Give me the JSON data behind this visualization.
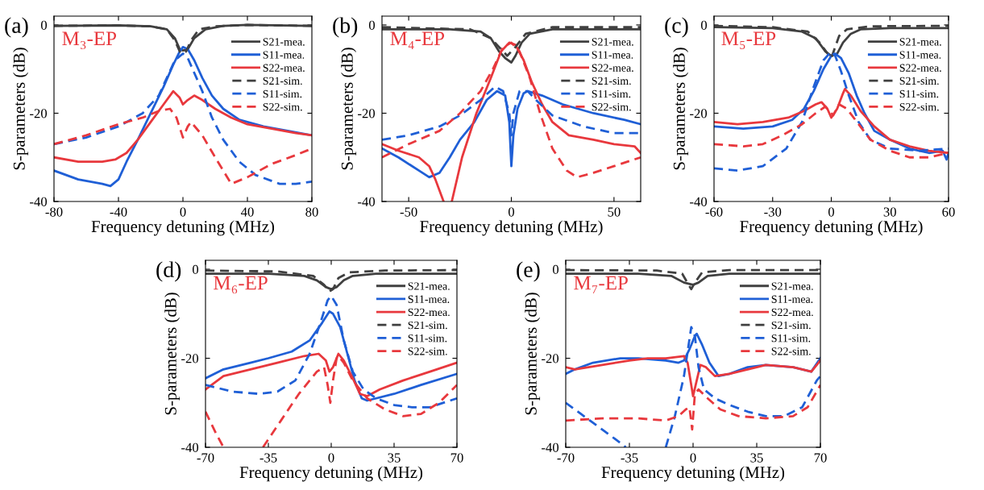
{
  "chart_data": [
    {
      "type": "line",
      "title": "(a)",
      "xlabel": "Frequency detuning (MHz)",
      "ylabel": "S-parameters (dB)",
      "annotations": [
        "M₃-EP"
      ],
      "legend": "top right",
      "xlim": [
        -80,
        80
      ],
      "xticks": [
        -80,
        -40,
        0,
        40,
        80
      ],
      "ylim": [
        -40,
        2
      ],
      "yticks": [
        -40,
        -20,
        0
      ],
      "series": [
        {
          "name": "S21-mea.",
          "color": "#404040",
          "line_style": "solid",
          "x": [
            -80,
            -40,
            -20,
            -10,
            -5,
            -2,
            0,
            3,
            7,
            14,
            25,
            40,
            80
          ],
          "values": [
            -0.2,
            -0.1,
            -0.3,
            -1,
            -3,
            -5.5,
            -5.8,
            -5.5,
            -3,
            -1,
            -0.2,
            0,
            -0.2
          ]
        },
        {
          "name": "S11-mea.",
          "color": "#1f5fd6",
          "line_style": "solid",
          "x": [
            -80,
            -65,
            -50,
            -45,
            -40,
            -35,
            -28,
            -20,
            -12,
            -6,
            -2,
            0,
            3,
            7,
            12,
            18,
            25,
            35,
            50,
            65,
            80
          ],
          "values": [
            -33,
            -35,
            -36,
            -36.5,
            -35,
            -31,
            -26,
            -20,
            -14,
            -9,
            -6,
            -5,
            -5.5,
            -8,
            -12,
            -16,
            -19,
            -21.5,
            -23,
            -24,
            -25
          ]
        },
        {
          "name": "S22-mea.",
          "color": "#e8383d",
          "line_style": "solid",
          "x": [
            -80,
            -65,
            -50,
            -42,
            -35,
            -28,
            -20,
            -12,
            -6,
            -2,
            0,
            3,
            7,
            12,
            20,
            30,
            40,
            55,
            70,
            80
          ],
          "values": [
            -30,
            -31,
            -31,
            -30.5,
            -29,
            -26,
            -22,
            -18,
            -15,
            -16.5,
            -18,
            -17,
            -16,
            -17,
            -19,
            -21,
            -22.5,
            -23.5,
            -24.5,
            -25
          ]
        },
        {
          "name": "S21-sim.",
          "color": "#404040",
          "line_style": "dashed",
          "x": [
            -80,
            -40,
            -20,
            -10,
            -5,
            -2,
            0,
            2,
            5,
            10,
            20,
            40,
            80
          ],
          "values": [
            -0.2,
            -0.1,
            -0.3,
            -1,
            -3.5,
            -6,
            -6.5,
            -6,
            -3.5,
            -1,
            -0.3,
            0,
            -0.2
          ]
        },
        {
          "name": "S11-sim.",
          "color": "#1f5fd6",
          "line_style": "dashed",
          "x": [
            -80,
            -60,
            -40,
            -25,
            -15,
            -10,
            -5,
            0,
            3,
            6,
            12,
            18,
            25,
            35,
            45,
            60,
            70,
            80
          ],
          "values": [
            -27,
            -25.5,
            -23,
            -20,
            -16,
            -12,
            -8,
            -6.5,
            -7.5,
            -10,
            -15,
            -21,
            -26,
            -31,
            -34,
            -36,
            -36,
            -35.5
          ]
        },
        {
          "name": "S22-sim.",
          "color": "#e8383d",
          "line_style": "dashed",
          "x": [
            -80,
            -60,
            -40,
            -25,
            -15,
            -8,
            -4,
            0,
            3,
            5,
            12,
            20,
            30,
            40,
            55,
            70,
            80
          ],
          "values": [
            -27,
            -25,
            -22.5,
            -21,
            -19.5,
            -19,
            -21,
            -25.5,
            -23,
            -22,
            -25,
            -30,
            -36,
            -34.5,
            -31.5,
            -29.5,
            -28
          ]
        }
      ]
    },
    {
      "type": "line",
      "title": "(b)",
      "xlabel": "Frequency detuning (MHz)",
      "ylabel": "S-parameters (dB)",
      "annotations": [
        "M₄-EP"
      ],
      "legend": "top right",
      "xlim": [
        -63,
        63
      ],
      "xticks": [
        -50,
        0,
        50
      ],
      "ylim": [
        -40,
        2
      ],
      "yticks": [
        -40,
        -20,
        0
      ],
      "series": [
        {
          "name": "S21-mea.",
          "color": "#404040",
          "line_style": "solid",
          "x": [
            -63,
            -30,
            -15,
            -10,
            -6,
            -3,
            0,
            2,
            5,
            9,
            20,
            63
          ],
          "values": [
            -1,
            -1,
            -1.5,
            -3,
            -6,
            -7.5,
            -8.5,
            -7,
            -4,
            -2,
            -1,
            -1
          ]
        },
        {
          "name": "S11-mea.",
          "color": "#1f5fd6",
          "line_style": "solid",
          "x": [
            -63,
            -55,
            -45,
            -40,
            -35,
            -30,
            -25,
            -18,
            -12,
            -7,
            -3,
            -1,
            0,
            1,
            3,
            6,
            8,
            15,
            25,
            40,
            55,
            63
          ],
          "values": [
            -28,
            -30,
            -33,
            -34.5,
            -33.5,
            -30,
            -26,
            -22,
            -17,
            -15,
            -16,
            -22,
            -32,
            -25,
            -19,
            -15.5,
            -15,
            -16,
            -18,
            -20,
            -21.5,
            -22.5
          ]
        },
        {
          "name": "S22-mea.",
          "color": "#e8383d",
          "line_style": "solid",
          "x": [
            -63,
            -55,
            -45,
            -40,
            -37,
            -33,
            -31,
            -29,
            -24,
            -17,
            -10,
            -5,
            -1,
            2,
            6,
            10,
            15,
            20,
            28,
            40,
            50,
            60,
            63
          ],
          "values": [
            -27,
            -28.5,
            -30,
            -32,
            -35,
            -40,
            null,
            -40,
            -30,
            -20,
            -12,
            -6,
            -4,
            -4.5,
            -8,
            -13,
            -18,
            -22,
            -25,
            -26,
            -27,
            -27.5,
            -29
          ]
        },
        {
          "name": "S21-sim.",
          "color": "#404040",
          "line_style": "dashed",
          "x": [
            -63,
            -20,
            -10,
            -4,
            -2,
            2,
            7,
            20,
            63
          ],
          "values": [
            -0.5,
            -1,
            -3,
            -6,
            -7,
            -5,
            -2,
            -0.5,
            -0.5
          ]
        },
        {
          "name": "S11-sim.",
          "color": "#1f5fd6",
          "line_style": "dashed",
          "x": [
            -63,
            -50,
            -35,
            -25,
            -15,
            -8,
            -4,
            -1,
            0,
            1,
            4,
            8,
            12,
            20,
            35,
            50,
            63
          ],
          "values": [
            -26,
            -25,
            -23,
            -20.5,
            -17,
            -14,
            -15,
            -20,
            -25,
            -20,
            -15,
            -15,
            -17,
            -20.5,
            -23,
            -24.5,
            -24.5
          ]
        },
        {
          "name": "S22-sim.",
          "color": "#e8383d",
          "line_style": "dashed",
          "x": [
            -63,
            -50,
            -35,
            -25,
            -15,
            -9,
            -4,
            0,
            4,
            9,
            14,
            20,
            27,
            32,
            40,
            50,
            63
          ],
          "values": [
            -30,
            -27,
            -24,
            -20,
            -15,
            -10,
            -5,
            -4,
            -6,
            -12,
            -20,
            -28,
            -33,
            -34.5,
            -33.5,
            -32,
            -30
          ]
        }
      ]
    },
    {
      "type": "line",
      "title": "(c)",
      "xlabel": "Frequency detuning (MHz)",
      "ylabel": "S-parameters (dB)",
      "annotations": [
        "M₅-EP"
      ],
      "legend": "top right",
      "xlim": [
        -60,
        60
      ],
      "xticks": [
        -60,
        -30,
        0,
        30,
        60
      ],
      "ylim": [
        -40,
        2
      ],
      "yticks": [
        -40,
        -20,
        0
      ],
      "series": [
        {
          "name": "S21-mea.",
          "color": "#404040",
          "line_style": "solid",
          "x": [
            -60,
            -30,
            -15,
            -8,
            -3,
            0,
            3,
            6,
            10,
            15,
            30,
            60
          ],
          "values": [
            -0.5,
            -0.7,
            -1.5,
            -3,
            -6,
            -7,
            -6.5,
            -4,
            -2,
            -1,
            -0.7,
            -0.7
          ]
        },
        {
          "name": "S11-mea.",
          "color": "#1f5fd6",
          "line_style": "solid",
          "x": [
            -60,
            -45,
            -30,
            -20,
            -14,
            -9,
            -4,
            0,
            2,
            5,
            9,
            13,
            17,
            22,
            30,
            40,
            50,
            57,
            59,
            60
          ],
          "values": [
            -23,
            -23.5,
            -23,
            -21.5,
            -19,
            -15,
            -10,
            -7,
            -6.5,
            -7.5,
            -11,
            -16,
            -20,
            -24,
            -26,
            -28,
            -29,
            -28.5,
            -30.5,
            -29
          ]
        },
        {
          "name": "S22-mea.",
          "color": "#e8383d",
          "line_style": "solid",
          "x": [
            -60,
            -48,
            -35,
            -22,
            -14,
            -8,
            -5,
            -2,
            0,
            3,
            6,
            7,
            10,
            15,
            22,
            30,
            40,
            50,
            60
          ],
          "values": [
            -22,
            -22.5,
            -22,
            -21,
            -19.5,
            -18,
            -17.5,
            -19,
            -21,
            -19,
            -15.5,
            -14.5,
            -16,
            -19.5,
            -23,
            -26,
            -27.5,
            -28.5,
            -29
          ]
        },
        {
          "name": "S21-sim.",
          "color": "#404040",
          "line_style": "dashed",
          "x": [
            -60,
            -30,
            -12,
            -6,
            -1,
            0,
            2,
            4,
            8,
            20,
            60
          ],
          "values": [
            -0.2,
            -0.5,
            -1.5,
            -4,
            -7,
            -7.5,
            -5,
            -2.5,
            -1,
            -0.3,
            -0.2
          ]
        },
        {
          "name": "S11-sim.",
          "color": "#1f5fd6",
          "line_style": "dashed",
          "x": [
            -60,
            -48,
            -35,
            -23,
            -15,
            -9,
            -4,
            0,
            2,
            5,
            9,
            14,
            20,
            30,
            45,
            60
          ],
          "values": [
            -32.5,
            -33,
            -32,
            -28,
            -22,
            -14,
            -8,
            -6,
            -7,
            -10.5,
            -16,
            -22,
            -26,
            -28,
            -28.5,
            -28
          ]
        },
        {
          "name": "S22-sim.",
          "color": "#e8383d",
          "line_style": "dashed",
          "x": [
            -60,
            -45,
            -35,
            -25,
            -15,
            -8,
            -3,
            0,
            1,
            4,
            8,
            14,
            20,
            30,
            40,
            50,
            60
          ],
          "values": [
            -27,
            -27.5,
            -27,
            -25,
            -22.5,
            -20,
            -18.5,
            -20,
            -20.5,
            -18,
            -19,
            -22.5,
            -26,
            -28.5,
            -30,
            -30,
            -29
          ]
        }
      ]
    },
    {
      "type": "line",
      "title": "(d)",
      "xlabel": "Frequency detuning (MHz)",
      "ylabel": "S-parameters (dB)",
      "annotations": [
        "M₆-EP"
      ],
      "legend": "top right",
      "xlim": [
        -70,
        70
      ],
      "xticks": [
        -70,
        -35,
        0,
        35,
        70
      ],
      "ylim": [
        -40,
        2
      ],
      "yticks": [
        -40,
        -20,
        0
      ],
      "series": [
        {
          "name": "S21-mea.",
          "color": "#404040",
          "line_style": "solid",
          "x": [
            -70,
            -35,
            -15,
            -8,
            -3,
            0,
            3,
            7,
            12,
            25,
            70
          ],
          "values": [
            -1,
            -1,
            -1.5,
            -2.5,
            -4,
            -4.5,
            -4,
            -2.5,
            -1.5,
            -1,
            -1
          ]
        },
        {
          "name": "S11-mea.",
          "color": "#1f5fd6",
          "line_style": "solid",
          "x": [
            -70,
            -60,
            -45,
            -35,
            -22,
            -12,
            -5,
            -1,
            1,
            5,
            9,
            13,
            17,
            20,
            25,
            35,
            50,
            70
          ],
          "values": [
            -24.5,
            -22.5,
            -21,
            -20,
            -18.5,
            -16,
            -12,
            -9.5,
            -10,
            -13,
            -19,
            -25,
            -29,
            -29.5,
            -29,
            -28,
            -26,
            -23.5
          ]
        },
        {
          "name": "S22-mea.",
          "color": "#e8383d",
          "line_style": "solid",
          "x": [
            -70,
            -60,
            -45,
            -30,
            -15,
            -7,
            -3,
            -1,
            1,
            4,
            7,
            12,
            16,
            20,
            27,
            40,
            55,
            70
          ],
          "values": [
            -27,
            -24,
            -22.5,
            -21,
            -19.5,
            -19,
            -20.5,
            -23,
            -22,
            -19,
            -20.5,
            -24.5,
            -28,
            -28.5,
            -27,
            -25,
            -23,
            -21
          ]
        },
        {
          "name": "S21-sim.",
          "color": "#404040",
          "line_style": "dashed",
          "x": [
            -70,
            -30,
            -10,
            -4,
            -1,
            1,
            4,
            10,
            30,
            70
          ],
          "values": [
            -0.3,
            -0.5,
            -1.5,
            -3.5,
            -5,
            -4.5,
            -2,
            -0.7,
            -0.3,
            -0.2
          ]
        },
        {
          "name": "S11-sim.",
          "color": "#1f5fd6",
          "line_style": "dashed",
          "x": [
            -70,
            -55,
            -40,
            -30,
            -20,
            -12,
            -6,
            -2,
            0,
            3,
            7,
            12,
            18,
            25,
            35,
            45,
            55,
            70
          ],
          "values": [
            -26,
            -27.5,
            -28,
            -27.5,
            -25,
            -19,
            -12,
            -7,
            -6,
            -8,
            -16,
            -23,
            -27,
            -29,
            -30.5,
            -31,
            -31,
            -29
          ]
        },
        {
          "name": "S22-sim.",
          "color": "#e8383d",
          "line_style": "dashed",
          "x": [
            -70,
            -64,
            -60,
            -50,
            -38,
            -28,
            -18,
            -8,
            -4,
            -2,
            -0.5,
            1,
            3,
            4,
            7,
            12,
            20,
            30,
            40,
            50,
            60,
            70
          ],
          "values": [
            -32,
            -37,
            -40,
            null,
            -40,
            -34,
            -28,
            -23,
            -22,
            -26,
            -30,
            -25,
            -20,
            -19.5,
            -21,
            -25,
            -29,
            -31.5,
            -33,
            -32.5,
            -30,
            -26
          ]
        }
      ]
    },
    {
      "type": "line",
      "title": "(e)",
      "xlabel": "Frequency detuning (MHz)",
      "ylabel": "S-parameters (dB)",
      "annotations": [
        "M₇-EP"
      ],
      "legend": "top right",
      "xlim": [
        -70,
        70
      ],
      "xticks": [
        -70,
        -35,
        0,
        35,
        70
      ],
      "ylim": [
        -40,
        2
      ],
      "yticks": [
        -40,
        -20,
        0
      ],
      "series": [
        {
          "name": "S21-mea.",
          "color": "#404040",
          "line_style": "solid",
          "x": [
            -70,
            -30,
            -12,
            -5,
            0,
            3,
            8,
            20,
            70
          ],
          "values": [
            -1,
            -1,
            -1.5,
            -3,
            -3.5,
            -3,
            -1.5,
            -1,
            -1
          ]
        },
        {
          "name": "S11-mea.",
          "color": "#1f5fd6",
          "line_style": "solid",
          "x": [
            -70,
            -65,
            -55,
            -40,
            -30,
            -15,
            -8,
            -5,
            -2,
            1,
            2,
            5,
            9,
            14,
            20,
            30,
            40,
            55,
            65,
            70
          ],
          "values": [
            -23.5,
            -22.5,
            -21,
            -20,
            -20,
            -20.5,
            -21,
            -20.5,
            -18,
            -15,
            -14.5,
            -17,
            -21,
            -24,
            -23.5,
            -22,
            -21.5,
            -22,
            -23,
            -20
          ]
        },
        {
          "name": "S22-mea.",
          "color": "#e8383d",
          "line_style": "solid",
          "x": [
            -70,
            -65,
            -50,
            -35,
            -25,
            -15,
            -5,
            -3,
            -1,
            0,
            2,
            4,
            7,
            12,
            20,
            30,
            40,
            55,
            65,
            70
          ],
          "values": [
            -22,
            -22.5,
            -21.5,
            -20.5,
            -20,
            -20,
            -19.5,
            -21,
            -26,
            -28.5,
            -25,
            -21.5,
            -22,
            -24,
            -23.5,
            -22.5,
            -21.5,
            -22,
            -23,
            -20.5
          ]
        },
        {
          "name": "S21-sim.",
          "color": "#404040",
          "line_style": "dashed",
          "x": [
            -70,
            -20,
            -6,
            -1,
            1,
            5,
            20,
            70
          ],
          "values": [
            -0.2,
            -0.3,
            -1,
            -4.5,
            -3,
            -0.7,
            -0.2,
            -0.2
          ]
        },
        {
          "name": "S11-sim.",
          "color": "#1f5fd6",
          "line_style": "dashed",
          "x": [
            -70,
            -60,
            -50,
            -40,
            -37,
            -25,
            -15,
            -10,
            -5,
            -1,
            1,
            3,
            6,
            12,
            20,
            30,
            40,
            50,
            60,
            68,
            70
          ],
          "values": [
            -30,
            -33,
            -36,
            -39,
            -40,
            null,
            -40,
            -33,
            -24,
            -13,
            -15,
            -22,
            -27,
            -29,
            -30.5,
            -32,
            -33,
            -33,
            -31,
            -25,
            -24
          ]
        },
        {
          "name": "S22-sim.",
          "color": "#e8383d",
          "line_style": "dashed",
          "x": [
            -70,
            -50,
            -30,
            -15,
            -8,
            -4,
            -2,
            -0.5,
            1,
            3,
            8,
            15,
            25,
            40,
            55,
            63,
            70
          ],
          "values": [
            -34,
            -33.5,
            -33.5,
            -34,
            -33,
            -31.5,
            -31,
            -36,
            -28,
            -27,
            -29,
            -31.5,
            -33,
            -33.5,
            -33,
            -31,
            -26
          ]
        }
      ]
    }
  ]
}
